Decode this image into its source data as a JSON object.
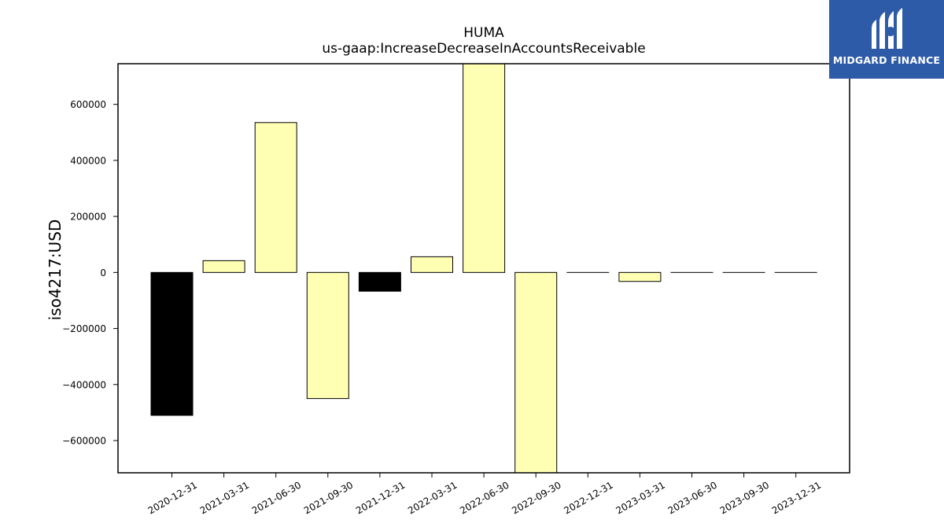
{
  "chart_data": {
    "type": "bar",
    "title": "HUMA",
    "subtitle": "us-gaap:IncreaseDecreaseInAccountsReceivable",
    "xlabel": "",
    "ylabel": "iso4217:USD",
    "categories": [
      "2020-12-31",
      "2021-03-31",
      "2021-06-30",
      "2021-09-30",
      "2021-12-31",
      "2022-03-31",
      "2022-06-30",
      "2022-09-30",
      "2022-12-31",
      "2023-03-31",
      "2023-06-30",
      "2023-09-30",
      "2023-12-31"
    ],
    "values": [
      -510000,
      42000,
      535000,
      -450000,
      -67000,
      56000,
      760000,
      -720000,
      0,
      -32000,
      0,
      0,
      0
    ],
    "bar_colors": [
      "#000000",
      "#ffffb3",
      "#ffffb3",
      "#ffffb3",
      "#000000",
      "#ffffb3",
      "#ffffb3",
      "#ffffb3",
      "#ffffb3",
      "#ffffb3",
      "#ffffb3",
      "#ffffb3",
      "#ffffb3"
    ],
    "ylim": [
      -715000,
      745000
    ],
    "yticks": [
      -600000,
      -400000,
      -200000,
      0,
      200000,
      400000,
      600000
    ],
    "ytick_labels": [
      "−600000",
      "−400000",
      "−200000",
      "0",
      "200000",
      "400000",
      "600000"
    ],
    "grid": false,
    "legend": "none"
  },
  "logo": {
    "text": "MIDGARD FINANCE",
    "background": "#2d5ba8",
    "icon": "midgard-logo-mark"
  }
}
